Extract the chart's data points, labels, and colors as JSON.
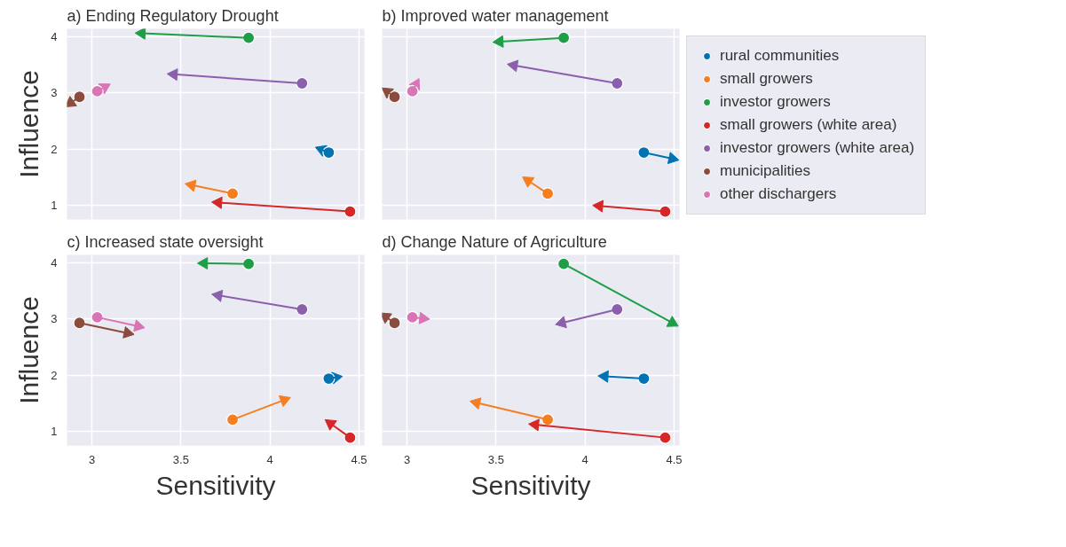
{
  "chart_data": [
    {
      "type": "line",
      "title": "a)  Ending Regulatory Drought",
      "ylabel": "Influence",
      "marker": "circle",
      "grid": true,
      "tick_labels": "y",
      "xlim": [
        2.86,
        4.53
      ],
      "ylim": [
        0.75,
        4.14
      ],
      "xticks": [
        3.0,
        3.5,
        4.0,
        4.5
      ],
      "yticks": [
        1,
        2,
        3,
        4
      ],
      "series": [
        {
          "color": "#0173b2",
          "x": [
            4.33,
            4.29
          ],
          "values": [
            1.94,
            1.99
          ]
        },
        {
          "color": "#f57f20",
          "x": [
            3.79,
            3.56
          ],
          "values": [
            1.21,
            1.36
          ]
        },
        {
          "color": "#1f9e48",
          "x": [
            3.88,
            3.28
          ],
          "values": [
            3.98,
            4.06
          ]
        },
        {
          "color": "#d62728",
          "x": [
            4.45,
            3.71
          ],
          "values": [
            0.89,
            1.05
          ]
        },
        {
          "color": "#8c5fad",
          "x": [
            4.18,
            3.46
          ],
          "values": [
            3.17,
            3.33
          ]
        },
        {
          "color": "#8b4c3e",
          "x": [
            2.93,
            2.88
          ],
          "values": [
            2.93,
            2.82
          ]
        },
        {
          "color": "#d974b6",
          "x": [
            3.03,
            3.07
          ],
          "values": [
            3.03,
            3.1
          ]
        }
      ]
    },
    {
      "type": "line",
      "title": "b)  Improved water management",
      "marker": "circle",
      "grid": true,
      "tick_labels": false,
      "legend": "right",
      "xlim": [
        2.86,
        4.53
      ],
      "ylim": [
        0.75,
        4.14
      ],
      "xticks": [
        3.0,
        3.5,
        4.0,
        4.5
      ],
      "yticks": [
        1,
        2,
        3,
        4
      ],
      "series": [
        {
          "name": "rural communities",
          "color": "#0173b2",
          "x": [
            4.33,
            4.49
          ],
          "values": [
            1.94,
            1.83
          ]
        },
        {
          "name": "small growers",
          "color": "#f57f20",
          "x": [
            3.79,
            3.68
          ],
          "values": [
            1.21,
            1.44
          ]
        },
        {
          "name": "investor growers",
          "color": "#1f9e48",
          "x": [
            3.88,
            3.52
          ],
          "values": [
            3.98,
            3.91
          ]
        },
        {
          "name": "small growers (white area)",
          "color": "#d62728",
          "x": [
            4.45,
            4.08
          ],
          "values": [
            0.89,
            0.99
          ]
        },
        {
          "name": "investor growers (white area)",
          "color": "#8c5fad",
          "x": [
            4.18,
            3.6
          ],
          "values": [
            3.17,
            3.49
          ]
        },
        {
          "name": "municipalities",
          "color": "#8b4c3e",
          "x": [
            2.93,
            2.89
          ],
          "values": [
            2.93,
            3.02
          ]
        },
        {
          "name": "other dischargers",
          "color": "#d974b6",
          "x": [
            3.03,
            3.05
          ],
          "values": [
            3.03,
            3.15
          ]
        }
      ]
    },
    {
      "type": "line",
      "title": "c)  Increased state oversight",
      "xlabel": "Sensitivity",
      "ylabel": "Influence",
      "marker": "circle",
      "grid": true,
      "xlim": [
        2.86,
        4.53
      ],
      "ylim": [
        0.75,
        4.14
      ],
      "xticks": [
        3.0,
        3.5,
        4.0,
        4.5
      ],
      "yticks": [
        1,
        2,
        3,
        4
      ],
      "series": [
        {
          "color": "#0173b2",
          "x": [
            4.33,
            4.37
          ],
          "values": [
            1.94,
            1.96
          ]
        },
        {
          "color": "#f57f20",
          "x": [
            3.79,
            4.08
          ],
          "values": [
            1.21,
            1.56
          ]
        },
        {
          "color": "#1f9e48",
          "x": [
            3.88,
            3.63
          ],
          "values": [
            3.98,
            3.99
          ]
        },
        {
          "color": "#d62728",
          "x": [
            4.45,
            4.34
          ],
          "values": [
            0.89,
            1.14
          ]
        },
        {
          "color": "#8c5fad",
          "x": [
            4.18,
            3.71
          ],
          "values": [
            3.17,
            3.42
          ]
        },
        {
          "color": "#8b4c3e",
          "x": [
            2.93,
            3.2
          ],
          "values": [
            2.93,
            2.75
          ]
        },
        {
          "color": "#d974b6",
          "x": [
            3.03,
            3.26
          ],
          "values": [
            3.03,
            2.87
          ]
        }
      ]
    },
    {
      "type": "line",
      "title": "d)  Change Nature of Agriculture",
      "xlabel": "Sensitivity",
      "marker": "circle",
      "grid": true,
      "tick_labels": "x",
      "xlim": [
        2.86,
        4.53
      ],
      "ylim": [
        0.75,
        4.14
      ],
      "xticks": [
        3.0,
        3.5,
        4.0,
        4.5
      ],
      "yticks": [
        1,
        2,
        3,
        4
      ],
      "series": [
        {
          "color": "#0173b2",
          "x": [
            4.33,
            4.11
          ],
          "values": [
            1.94,
            1.98
          ]
        },
        {
          "color": "#f57f20",
          "x": [
            3.79,
            3.39
          ],
          "values": [
            1.21,
            1.51
          ]
        },
        {
          "color": "#1f9e48",
          "x": [
            3.88,
            4.49
          ],
          "values": [
            3.98,
            2.93
          ]
        },
        {
          "color": "#d62728",
          "x": [
            4.45,
            3.72
          ],
          "values": [
            0.89,
            1.12
          ]
        },
        {
          "color": "#8c5fad",
          "x": [
            4.18,
            3.87
          ],
          "values": [
            3.17,
            2.93
          ]
        },
        {
          "color": "#8b4c3e",
          "x": [
            2.93,
            2.88
          ],
          "values": [
            2.93,
            3.04
          ]
        },
        {
          "color": "#d974b6",
          "x": [
            3.03,
            3.09
          ],
          "values": [
            3.03,
            3.01
          ]
        }
      ]
    }
  ]
}
